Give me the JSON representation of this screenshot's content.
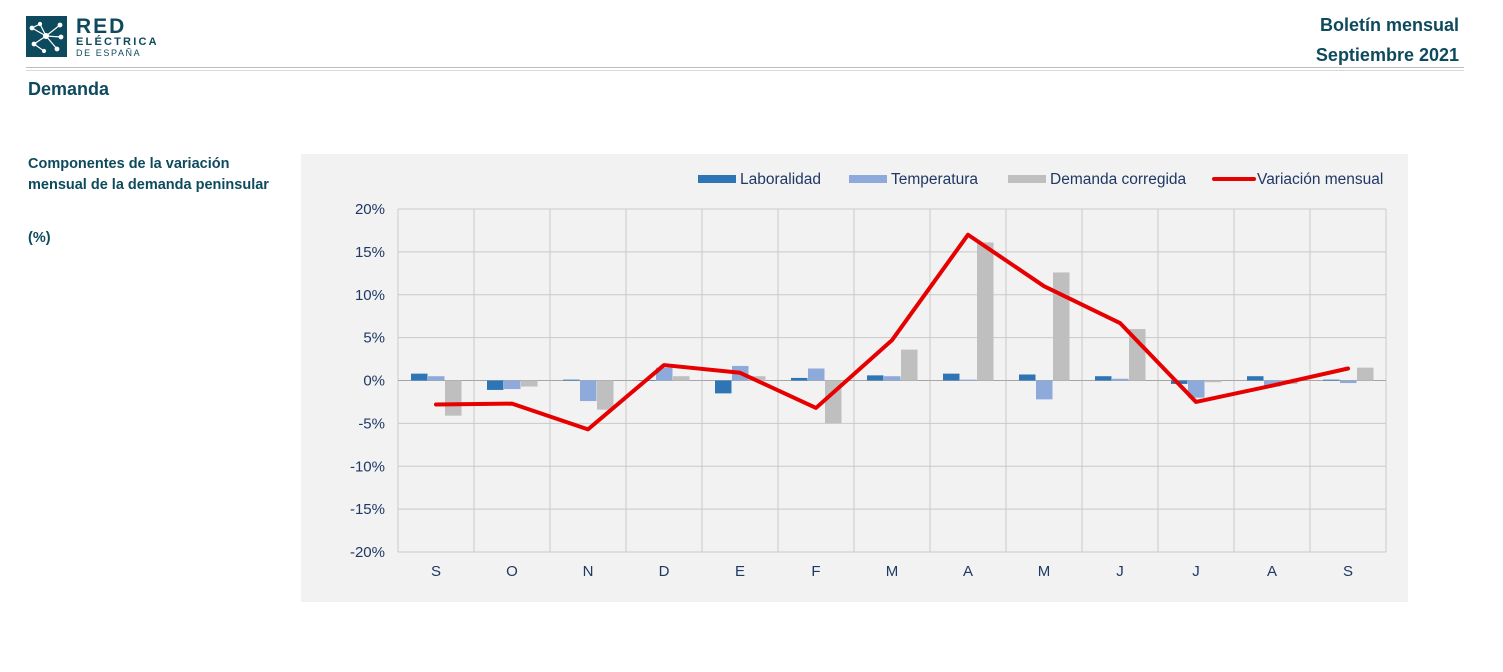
{
  "header": {
    "logo": {
      "line1": "RED",
      "line2": "ELÉCTRICA",
      "line3": "DE ESPAÑA"
    },
    "bulletin_title": "Boletín mensual",
    "bulletin_period": "Septiembre 2021"
  },
  "section_title": "Demanda",
  "chart_description": "Componentes de la variación mensual de la demanda peninsular",
  "chart_unit": "(%)",
  "colors": {
    "brand": "#0e4a5d",
    "laboralidad": "#2e75b6",
    "temperatura": "#8eaadb",
    "demanda_corregida": "#bfbfbf",
    "variacion_mensual": "#e60000",
    "panel_background": "#f2f2f2"
  },
  "chart_data": {
    "type": "bar",
    "categories": [
      "S",
      "O",
      "N",
      "D",
      "E",
      "F",
      "M",
      "A",
      "M",
      "J",
      "J",
      "A",
      "S"
    ],
    "ylim": [
      -20,
      20
    ],
    "yticks": [
      20,
      15,
      10,
      5,
      0,
      -5,
      -10,
      -15,
      -20
    ],
    "ytick_labels": [
      "20%",
      "15%",
      "10%",
      "5%",
      "0%",
      "-5%",
      "-10%",
      "-15%",
      "-20%"
    ],
    "grid": true,
    "legend_position": "top-right",
    "series": [
      {
        "name": "Laboralidad",
        "type": "bar",
        "values": [
          0.8,
          -1.1,
          0.1,
          0.0,
          -1.5,
          0.3,
          0.6,
          0.8,
          0.7,
          0.5,
          -0.4,
          0.5,
          0.1
        ]
      },
      {
        "name": "Temperatura",
        "type": "bar",
        "values": [
          0.5,
          -1.0,
          -2.4,
          1.5,
          1.7,
          1.4,
          0.5,
          0.1,
          -2.2,
          0.2,
          -2.0,
          -0.7,
          -0.3
        ]
      },
      {
        "name": "Demanda corregida",
        "type": "bar",
        "values": [
          -4.1,
          -0.7,
          -3.4,
          0.5,
          0.5,
          -5.0,
          3.6,
          16.1,
          12.6,
          6.0,
          -0.2,
          -0.4,
          1.5
        ]
      },
      {
        "name": "Variación mensual",
        "type": "line",
        "values": [
          -2.8,
          -2.7,
          -5.7,
          1.8,
          0.9,
          -3.2,
          4.7,
          17.0,
          11.0,
          6.7,
          -2.5,
          -0.6,
          1.4
        ]
      }
    ]
  }
}
